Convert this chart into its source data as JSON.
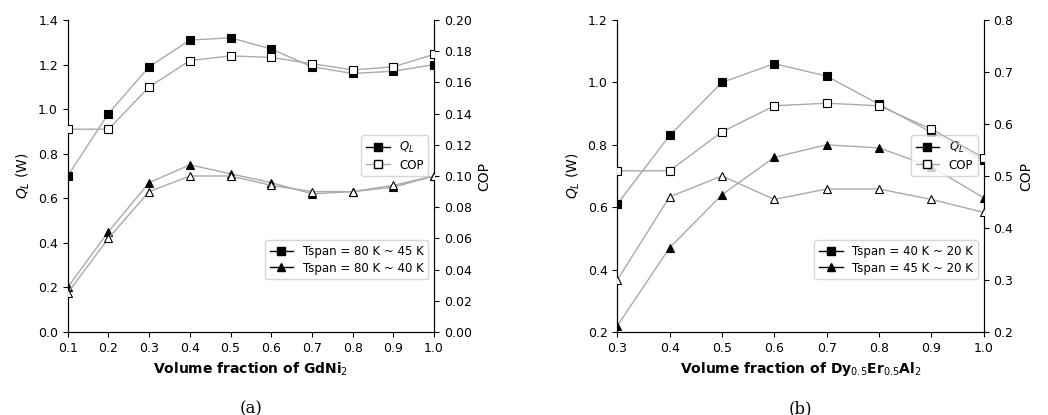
{
  "panel_a": {
    "x": [
      0.1,
      0.2,
      0.3,
      0.4,
      0.5,
      0.6,
      0.7,
      0.8,
      0.9,
      1.0
    ],
    "QL_45K": [
      0.7,
      0.98,
      1.19,
      1.31,
      1.32,
      1.27,
      1.19,
      1.16,
      1.17,
      1.2
    ],
    "COP_45K": [
      0.13,
      0.13,
      0.157,
      0.174,
      0.177,
      0.176,
      0.172,
      0.168,
      0.17,
      0.178
    ],
    "QL_40K": [
      0.2,
      0.45,
      0.67,
      0.75,
      0.71,
      0.67,
      0.62,
      0.63,
      0.65,
      0.7
    ],
    "COP_40K": [
      0.025,
      0.06,
      0.09,
      0.1,
      0.1,
      0.094,
      0.09,
      0.09,
      0.094,
      0.1
    ],
    "xlabel": "Volume fraction of GdNi$_2$",
    "ylabel_left": "$Q_L$ (W)",
    "ylabel_right": "COP",
    "xlim": [
      0.1,
      1.0
    ],
    "ylim_left": [
      0.0,
      1.4
    ],
    "ylim_right": [
      0.0,
      0.2
    ],
    "xticks": [
      0.1,
      0.2,
      0.3,
      0.4,
      0.5,
      0.6,
      0.7,
      0.8,
      0.9,
      1.0
    ],
    "yticks_left": [
      0.0,
      0.2,
      0.4,
      0.6,
      0.8,
      1.0,
      1.2,
      1.4
    ],
    "yticks_right": [
      0.0,
      0.02,
      0.04,
      0.06,
      0.08,
      0.1,
      0.12,
      0.14,
      0.16,
      0.18,
      0.2
    ],
    "label_QL": "$Q_L$",
    "label_COP": "COP",
    "label_45K": "Tspan = 80 K ~ 45 K",
    "label_40K": "Tspan = 80 K ~ 40 K",
    "subtitle": "(a)"
  },
  "panel_b": {
    "x": [
      0.3,
      0.4,
      0.5,
      0.6,
      0.7,
      0.8,
      0.9,
      1.0
    ],
    "QL_40K": [
      0.61,
      0.83,
      1.0,
      1.06,
      1.02,
      0.93,
      0.84,
      0.75
    ],
    "COP_40K": [
      0.51,
      0.51,
      0.585,
      0.635,
      0.64,
      0.635,
      0.59,
      0.535
    ],
    "QL_45K": [
      0.22,
      0.47,
      0.64,
      0.76,
      0.8,
      0.79,
      0.73,
      0.63
    ],
    "COP_45K": [
      0.3,
      0.46,
      0.5,
      0.455,
      0.475,
      0.475,
      0.455,
      0.43
    ],
    "xlabel": "Volume fraction of Dy$_{0.5}$Er$_{0.5}$Al$_2$",
    "ylabel_left": "$Q_L$ (W)",
    "ylabel_right": "COP",
    "xlim": [
      0.3,
      1.0
    ],
    "ylim_left": [
      0.2,
      1.2
    ],
    "ylim_right": [
      0.2,
      0.8
    ],
    "xticks": [
      0.3,
      0.4,
      0.5,
      0.6,
      0.7,
      0.8,
      0.9,
      1.0
    ],
    "yticks_left": [
      0.2,
      0.4,
      0.6,
      0.8,
      1.0,
      1.2
    ],
    "yticks_right": [
      0.2,
      0.3,
      0.4,
      0.5,
      0.6,
      0.7,
      0.8
    ],
    "label_QL": "$Q_L$",
    "label_COP": "COP",
    "label_40K": "Tspan = 40 K ~ 20 K",
    "label_45K": "Tspan = 45 K ~ 20 K",
    "subtitle": "(b)"
  },
  "line_color": "#aaaaaa",
  "marker_size": 6,
  "linewidth": 1.0,
  "font_size_label": 10,
  "font_size_tick": 9,
  "font_size_legend": 8.5,
  "font_size_subtitle": 12
}
